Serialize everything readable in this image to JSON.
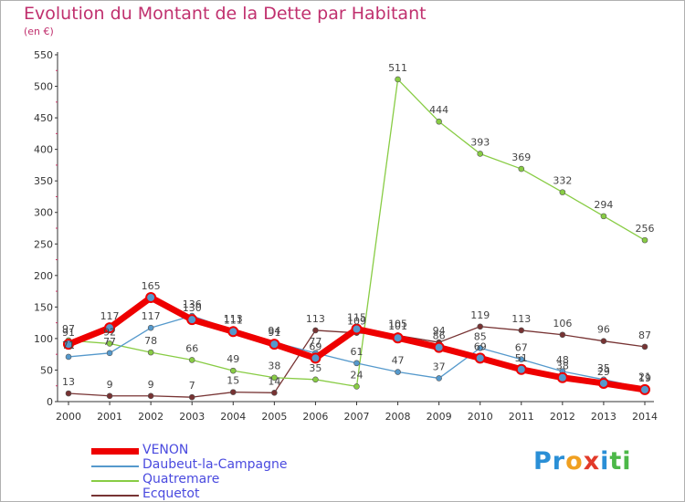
{
  "title": "Evolution du Montant de la Dette par Habitant",
  "subtitle": "(en €)",
  "logo": {
    "text": "Proxiti",
    "letters": [
      "P",
      "r",
      "o",
      "x",
      "i",
      "t",
      "i"
    ],
    "colors": [
      "#2a8fd6",
      "#2a8fd6",
      "#f0a020",
      "#e23a2a",
      "#2a8fd6",
      "#4cb848",
      "#4cb848"
    ]
  },
  "chart_data": {
    "type": "line",
    "x": [
      "2000",
      "2001",
      "2002",
      "2003",
      "2004",
      "2005",
      "2006",
      "2007",
      "2008",
      "2009",
      "2010",
      "2011",
      "2012",
      "2013",
      "2014"
    ],
    "ylim": [
      0,
      550
    ],
    "yticks": [
      "0",
      "50",
      "100",
      "150",
      "200",
      "250",
      "300",
      "350",
      "400",
      "450",
      "500",
      "550"
    ],
    "grid": false,
    "legend_position": "bottom-left",
    "series": [
      {
        "name": "VENON",
        "color": "#ee0000",
        "values": [
          91,
          117,
          165,
          130,
          111,
          91,
          69,
          115,
          101,
          86,
          69,
          51,
          38,
          29,
          19
        ],
        "labels": [
          "91",
          "117",
          "165",
          "130",
          "111",
          "91",
          "69",
          "115",
          "101",
          "86",
          "69",
          "51",
          "38",
          "29",
          "19"
        ]
      },
      {
        "name": "Daubeut-la-Campagne",
        "color": "#5599cc",
        "values": [
          71,
          77,
          117,
          136,
          113,
          94,
          77,
          61,
          47,
          37,
          85,
          67,
          48,
          35,
          21
        ],
        "labels": [
          "71",
          "77",
          "117",
          "136",
          "113",
          "94",
          "77",
          "61",
          "47",
          "37",
          "85",
          "67",
          "48",
          "35",
          "21"
        ]
      },
      {
        "name": "Quatremare",
        "color": "#88cc44",
        "values": [
          97,
          92,
          78,
          66,
          49,
          38,
          35,
          24,
          511,
          444,
          393,
          369,
          332,
          294,
          256
        ],
        "labels": [
          "97",
          "92",
          "78",
          "66",
          "49",
          "38",
          "35",
          "24",
          "511",
          "444",
          "393",
          "369",
          "332",
          "294",
          "256"
        ]
      },
      {
        "name": "Ecquetot",
        "color": "#773333",
        "values": [
          13,
          9,
          9,
          7,
          15,
          14,
          113,
          109,
          105,
          94,
          119,
          113,
          106,
          96,
          87
        ],
        "labels": [
          "13",
          "9",
          "9",
          "7",
          "15",
          "14",
          "113",
          "109",
          "105",
          "94",
          "119",
          "113",
          "106",
          "96",
          "87"
        ]
      }
    ]
  }
}
